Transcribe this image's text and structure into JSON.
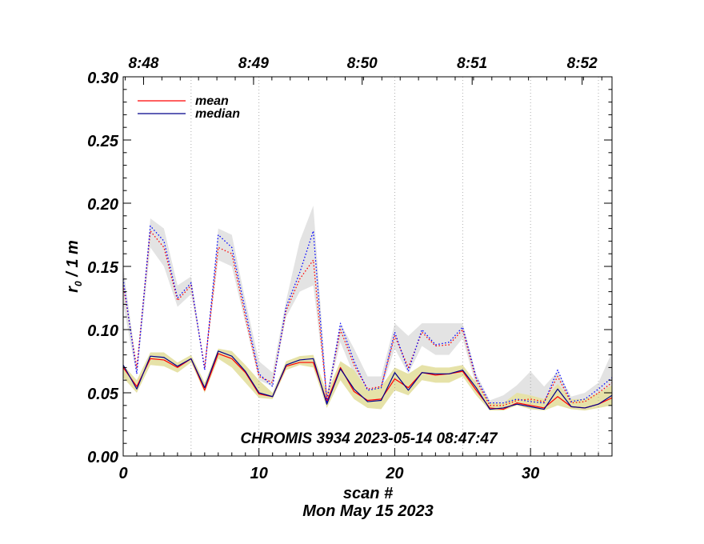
{
  "chart_data": {
    "type": "line",
    "title": "CHROMIS 3934 2023-05-14 08:47:47",
    "xlabel": "scan #",
    "xlabel2": "Mon May 15 2023",
    "ylabel_main": "r",
    "ylabel_sub": "0",
    "ylabel_rest": " / 1 m",
    "xlim": [
      0,
      36
    ],
    "ylim": [
      0,
      0.3
    ],
    "x_ticks": [
      0,
      10,
      20,
      30
    ],
    "x_tick_labels": [
      "0",
      "10",
      "20",
      "30"
    ],
    "y_ticks": [
      0,
      0.05,
      0.1,
      0.15,
      0.2,
      0.25,
      0.3
    ],
    "y_tick_labels": [
      "0.00",
      "0.05",
      "0.10",
      "0.15",
      "0.20",
      "0.25",
      "0.30"
    ],
    "top_axis": {
      "labels": [
        "8:48",
        "8:49",
        "8:50",
        "8:51",
        "8:52"
      ],
      "positions": [
        1.5,
        9.6,
        17.6,
        25.7,
        33.8
      ]
    },
    "time_gridlines": [
      5,
      10,
      20,
      25,
      30,
      35
    ],
    "legend": {
      "placement": "top-left",
      "items": [
        {
          "label": "mean",
          "color": "#ff0000"
        },
        {
          "label": "median",
          "color": "#00008b"
        }
      ]
    },
    "x": [
      0,
      1,
      2,
      3,
      4,
      5,
      6,
      7,
      8,
      9,
      10,
      11,
      12,
      13,
      14,
      15,
      16,
      17,
      18,
      19,
      20,
      21,
      22,
      23,
      24,
      25,
      26,
      27,
      28,
      29,
      30,
      31,
      32,
      33,
      34,
      35,
      36
    ],
    "series": [
      {
        "name": "mean",
        "group": "lower",
        "style": "solid",
        "color": "#ff0000",
        "values": [
          0.07,
          0.055,
          0.077,
          0.076,
          0.07,
          0.077,
          0.052,
          0.081,
          0.077,
          0.066,
          0.049,
          0.047,
          0.071,
          0.074,
          0.074,
          0.043,
          0.07,
          0.051,
          0.044,
          0.045,
          0.061,
          0.054,
          0.066,
          0.064,
          0.065,
          0.067,
          0.052,
          0.038,
          0.037,
          0.042,
          0.04,
          0.038,
          0.047,
          0.039,
          0.038,
          0.041,
          0.046
        ]
      },
      {
        "name": "median",
        "group": "lower",
        "style": "solid",
        "color": "#00008b",
        "values": [
          0.072,
          0.053,
          0.079,
          0.078,
          0.071,
          0.077,
          0.054,
          0.083,
          0.079,
          0.067,
          0.05,
          0.047,
          0.072,
          0.076,
          0.077,
          0.041,
          0.069,
          0.053,
          0.043,
          0.044,
          0.066,
          0.052,
          0.066,
          0.065,
          0.065,
          0.068,
          0.054,
          0.037,
          0.038,
          0.041,
          0.039,
          0.037,
          0.053,
          0.039,
          0.038,
          0.041,
          0.048
        ]
      },
      {
        "name": "mean",
        "group": "upper",
        "style": "dotted",
        "color": "#ff0000",
        "values": [
          0.135,
          0.07,
          0.178,
          0.165,
          0.123,
          0.135,
          0.07,
          0.165,
          0.16,
          0.11,
          0.063,
          0.058,
          0.115,
          0.14,
          0.155,
          0.045,
          0.1,
          0.072,
          0.053,
          0.055,
          0.095,
          0.07,
          0.098,
          0.087,
          0.088,
          0.1,
          0.06,
          0.04,
          0.04,
          0.044,
          0.045,
          0.043,
          0.063,
          0.042,
          0.043,
          0.05,
          0.058
        ]
      },
      {
        "name": "median",
        "group": "upper",
        "style": "dotted",
        "color": "#0000ff",
        "values": [
          0.14,
          0.065,
          0.182,
          0.17,
          0.125,
          0.137,
          0.068,
          0.175,
          0.165,
          0.115,
          0.065,
          0.055,
          0.118,
          0.145,
          0.178,
          0.043,
          0.105,
          0.075,
          0.052,
          0.054,
          0.098,
          0.067,
          0.1,
          0.088,
          0.09,
          0.102,
          0.062,
          0.042,
          0.042,
          0.045,
          0.043,
          0.042,
          0.068,
          0.043,
          0.045,
          0.053,
          0.062
        ]
      }
    ],
    "bands": [
      {
        "group": "upper",
        "color": "#e3e3e3",
        "low": [
          0.12,
          0.063,
          0.165,
          0.15,
          0.118,
          0.128,
          0.07,
          0.155,
          0.15,
          0.105,
          0.06,
          0.055,
          0.11,
          0.13,
          0.135,
          0.045,
          0.09,
          0.064,
          0.05,
          0.052,
          0.085,
          0.065,
          0.087,
          0.08,
          0.08,
          0.093,
          0.055,
          0.039,
          0.04,
          0.042,
          0.04,
          0.04,
          0.055,
          0.04,
          0.041,
          0.046,
          0.052
        ],
        "high": [
          0.15,
          0.07,
          0.188,
          0.18,
          0.135,
          0.142,
          0.07,
          0.18,
          0.175,
          0.123,
          0.075,
          0.066,
          0.123,
          0.17,
          0.198,
          0.05,
          0.105,
          0.085,
          0.063,
          0.063,
          0.105,
          0.095,
          0.105,
          0.105,
          0.105,
          0.105,
          0.065,
          0.044,
          0.048,
          0.056,
          0.067,
          0.055,
          0.067,
          0.047,
          0.05,
          0.058,
          0.082
        ]
      },
      {
        "group": "lower",
        "color": "#e6e2a8",
        "low": [
          0.062,
          0.05,
          0.072,
          0.071,
          0.066,
          0.074,
          0.05,
          0.077,
          0.07,
          0.058,
          0.046,
          0.045,
          0.068,
          0.072,
          0.07,
          0.038,
          0.06,
          0.045,
          0.038,
          0.037,
          0.052,
          0.048,
          0.06,
          0.058,
          0.058,
          0.063,
          0.048,
          0.036,
          0.036,
          0.04,
          0.037,
          0.036,
          0.04,
          0.037,
          0.036,
          0.038,
          0.04
        ],
        "high": [
          0.072,
          0.06,
          0.082,
          0.082,
          0.074,
          0.08,
          0.058,
          0.085,
          0.083,
          0.072,
          0.06,
          0.05,
          0.075,
          0.079,
          0.08,
          0.05,
          0.075,
          0.068,
          0.052,
          0.055,
          0.07,
          0.065,
          0.072,
          0.07,
          0.07,
          0.072,
          0.058,
          0.042,
          0.042,
          0.05,
          0.048,
          0.045,
          0.057,
          0.045,
          0.045,
          0.05,
          0.056
        ]
      }
    ]
  }
}
